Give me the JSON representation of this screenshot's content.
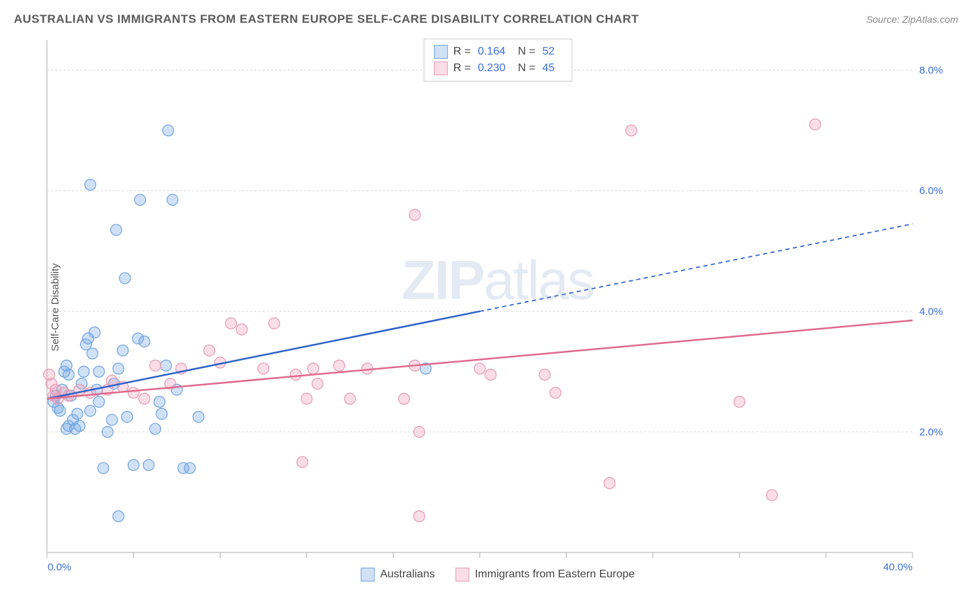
{
  "header": {
    "title": "AUSTRALIAN VS IMMIGRANTS FROM EASTERN EUROPE SELF-CARE DISABILITY CORRELATION CHART",
    "source": "Source: ZipAtlas.com"
  },
  "chart": {
    "type": "scatter",
    "ylabel": "Self-Care Disability",
    "watermark_bold": "ZIP",
    "watermark_light": "atlas",
    "xlim": [
      0,
      40
    ],
    "ylim": [
      0,
      8.5
    ],
    "x_axis_labels": {
      "min": "0.0%",
      "max": "40.0%"
    },
    "y_ticks": [
      {
        "v": 2.0,
        "label": "2.0%"
      },
      {
        "v": 4.0,
        "label": "4.0%"
      },
      {
        "v": 6.0,
        "label": "6.0%"
      },
      {
        "v": 8.0,
        "label": "8.0%"
      }
    ],
    "x_tick_positions": [
      0,
      4,
      8,
      12,
      16,
      20,
      24,
      28,
      32,
      36,
      40
    ],
    "background_color": "#ffffff",
    "grid_color": "#d8d8d8",
    "axis_color": "#c8c8c8",
    "tick_label_color": "#3b6fd6",
    "axis_label_color_x": "#3b6fd6",
    "marker_radius": 8,
    "marker_stroke_width": 1.2,
    "trend_line_width": 2.5,
    "series": [
      {
        "id": "australians",
        "label": "Australians",
        "fill": "rgba(120,170,230,0.35)",
        "stroke": "#6fa3e0",
        "trend_color": "#2e63c9",
        "R": "0.164",
        "N": "52",
        "trend": {
          "x1": 0,
          "y1": 2.55,
          "x2_solid": 20,
          "y2_solid": 4.0,
          "x2_dash": 40,
          "y2_dash": 5.45
        },
        "points": [
          [
            0.3,
            2.5
          ],
          [
            0.4,
            2.6
          ],
          [
            0.5,
            2.4
          ],
          [
            0.6,
            2.35
          ],
          [
            0.7,
            2.7
          ],
          [
            0.9,
            2.05
          ],
          [
            1.0,
            2.1
          ],
          [
            0.8,
            3.0
          ],
          [
            0.9,
            3.1
          ],
          [
            1.0,
            2.95
          ],
          [
            1.1,
            2.6
          ],
          [
            1.2,
            2.2
          ],
          [
            1.3,
            2.05
          ],
          [
            1.4,
            2.3
          ],
          [
            1.5,
            2.1
          ],
          [
            1.6,
            2.8
          ],
          [
            1.7,
            3.0
          ],
          [
            1.8,
            3.45
          ],
          [
            1.9,
            3.55
          ],
          [
            2.0,
            2.35
          ],
          [
            2.1,
            3.3
          ],
          [
            2.2,
            3.65
          ],
          [
            2.3,
            2.7
          ],
          [
            2.4,
            3.0
          ],
          [
            2.6,
            1.4
          ],
          [
            2.8,
            2.0
          ],
          [
            3.0,
            2.2
          ],
          [
            3.1,
            2.8
          ],
          [
            3.3,
            3.05
          ],
          [
            3.5,
            3.35
          ],
          [
            3.6,
            4.55
          ],
          [
            2.0,
            6.1
          ],
          [
            3.7,
            2.25
          ],
          [
            4.0,
            1.45
          ],
          [
            4.2,
            3.55
          ],
          [
            4.3,
            5.85
          ],
          [
            4.5,
            3.5
          ],
          [
            4.7,
            1.45
          ],
          [
            5.0,
            2.05
          ],
          [
            5.2,
            2.5
          ],
          [
            5.3,
            2.3
          ],
          [
            5.5,
            3.1
          ],
          [
            5.6,
            7.0
          ],
          [
            5.8,
            5.85
          ],
          [
            6.0,
            2.7
          ],
          [
            6.3,
            1.4
          ],
          [
            6.6,
            1.4
          ],
          [
            7.0,
            2.25
          ],
          [
            3.2,
            5.35
          ],
          [
            3.3,
            0.6
          ],
          [
            2.4,
            2.5
          ],
          [
            17.5,
            3.05
          ]
        ]
      },
      {
        "id": "immigrants",
        "label": "Immigrants from Eastern Europe",
        "fill": "rgba(240,160,185,0.35)",
        "stroke": "#e79ab3",
        "trend_color": "#e06a8e",
        "R": "0.230",
        "N": "45",
        "trend": {
          "x1": 0,
          "y1": 2.55,
          "x2_solid": 40,
          "y2_solid": 3.85,
          "x2_dash": 40,
          "y2_dash": 3.85
        },
        "points": [
          [
            0.1,
            2.95
          ],
          [
            0.2,
            2.8
          ],
          [
            0.3,
            2.6
          ],
          [
            0.4,
            2.7
          ],
          [
            0.5,
            2.55
          ],
          [
            0.8,
            2.65
          ],
          [
            1.0,
            2.6
          ],
          [
            1.5,
            2.7
          ],
          [
            2.0,
            2.65
          ],
          [
            2.8,
            2.7
          ],
          [
            3.0,
            2.85
          ],
          [
            3.5,
            2.75
          ],
          [
            4.0,
            2.65
          ],
          [
            4.5,
            2.55
          ],
          [
            5.0,
            3.1
          ],
          [
            5.7,
            2.8
          ],
          [
            6.2,
            3.05
          ],
          [
            7.5,
            3.35
          ],
          [
            8.0,
            3.15
          ],
          [
            8.5,
            3.8
          ],
          [
            9.0,
            3.7
          ],
          [
            10.0,
            3.05
          ],
          [
            10.5,
            3.8
          ],
          [
            11.5,
            2.95
          ],
          [
            12.0,
            2.55
          ],
          [
            12.3,
            3.05
          ],
          [
            12.5,
            2.8
          ],
          [
            13.5,
            3.1
          ],
          [
            14.0,
            2.55
          ],
          [
            14.8,
            3.05
          ],
          [
            16.5,
            2.55
          ],
          [
            17.0,
            5.6
          ],
          [
            17.2,
            2.0
          ],
          [
            11.8,
            1.5
          ],
          [
            20.0,
            3.05
          ],
          [
            20.5,
            2.95
          ],
          [
            23.0,
            2.95
          ],
          [
            23.5,
            2.65
          ],
          [
            17.2,
            0.6
          ],
          [
            27.0,
            7.0
          ],
          [
            26.0,
            1.15
          ],
          [
            32.0,
            2.5
          ],
          [
            33.5,
            0.95
          ],
          [
            35.5,
            7.1
          ],
          [
            17.0,
            3.1
          ]
        ]
      }
    ],
    "legend_bottom": [
      {
        "series": "australians",
        "label": "Australians"
      },
      {
        "series": "immigrants",
        "label": "Immigrants from Eastern Europe"
      }
    ]
  }
}
